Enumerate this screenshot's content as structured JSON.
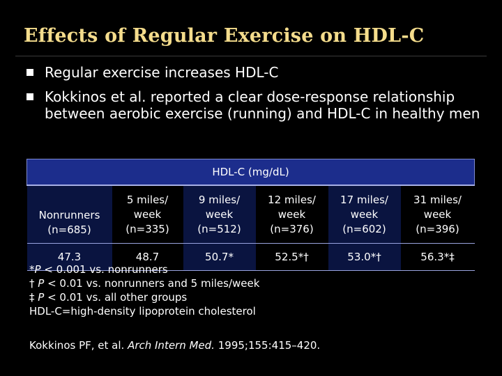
{
  "slide": {
    "title": "Effects of Regular Exercise on HDL-C",
    "bullets": [
      "Regular exercise increases HDL-C",
      "Kokkinos et al. reported a clear dose-response relationship between aerobic exercise (running) and HDL-C in healthy men"
    ]
  },
  "table": {
    "header": "HDL-C (mg/dL)",
    "columns": [
      {
        "line1": "",
        "line2": "Nonrunners",
        "line3": "(n=685)"
      },
      {
        "line1": "5 miles/",
        "line2": "week",
        "line3": "(n=335)"
      },
      {
        "line1": "9 miles/",
        "line2": "week",
        "line3": "(n=512)"
      },
      {
        "line1": "12 miles/",
        "line2": "week",
        "line3": "(n=376)"
      },
      {
        "line1": "17 miles/",
        "line2": "week",
        "line3": "(n=602)"
      },
      {
        "line1": "31 miles/",
        "line2": "week",
        "line3": "(n=396)"
      }
    ],
    "values": [
      "47.3",
      "48.7",
      "50.7*",
      "52.5*†",
      "53.0*†",
      "56.3*‡"
    ]
  },
  "notes": {
    "n1_sym": "*",
    "n1_p": "P",
    "n1_text": " < 0.001 vs. nonrunners",
    "n2_sym": "† ",
    "n2_p": "P",
    "n2_text": " < 0.01 vs. nonrunners and 5 miles/week",
    "n3_sym": "‡ ",
    "n3_p": "P",
    "n3_text": " < 0.01 vs. all other groups",
    "n4_text": "HDL-C=high-density lipoprotein cholesterol"
  },
  "citation": {
    "authors": "Kokkinos PF, et al. ",
    "journal": "Arch Intern Med.",
    "details": " 1995;155:415–420."
  },
  "colors": {
    "title": "#f4dc8c",
    "background": "#000000",
    "table_header": "#1c2d8c",
    "table_band": "#0a1440",
    "table_rule": "#9aa4e0"
  }
}
